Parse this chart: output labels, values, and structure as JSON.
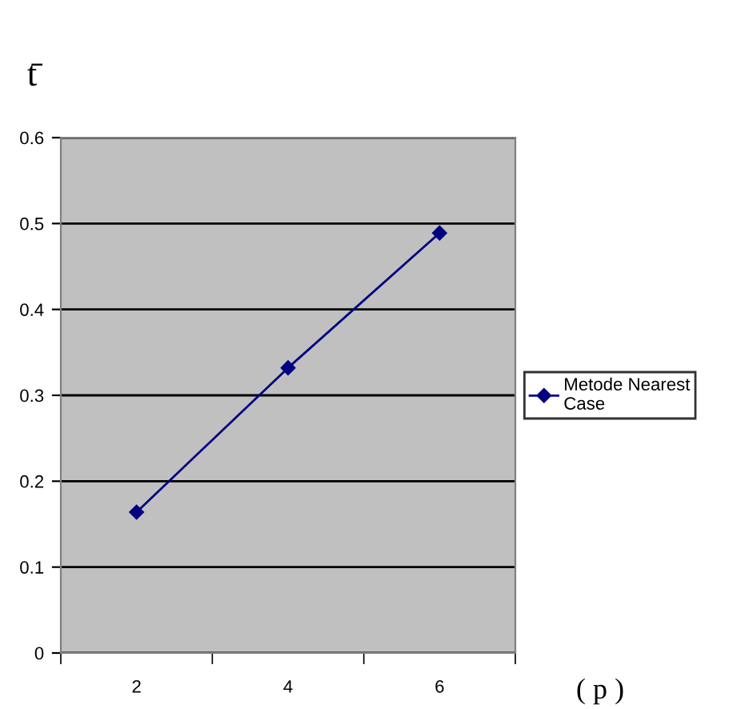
{
  "chart_data": {
    "type": "line",
    "ylabel": "t̄",
    "xlabel": "( p )",
    "categories": [
      "2",
      "4",
      "6"
    ],
    "series": [
      {
        "name": "Metode Nearest\nCase",
        "color": "#000080",
        "values": [
          0.164,
          0.332,
          0.489
        ]
      }
    ],
    "ylim": [
      0,
      0.6
    ],
    "yticks": [
      0,
      0.1,
      0.2,
      0.3,
      0.4,
      0.5,
      0.6
    ],
    "grid": "y",
    "legend": "right",
    "marker": "diamond",
    "line_style": "solid"
  }
}
